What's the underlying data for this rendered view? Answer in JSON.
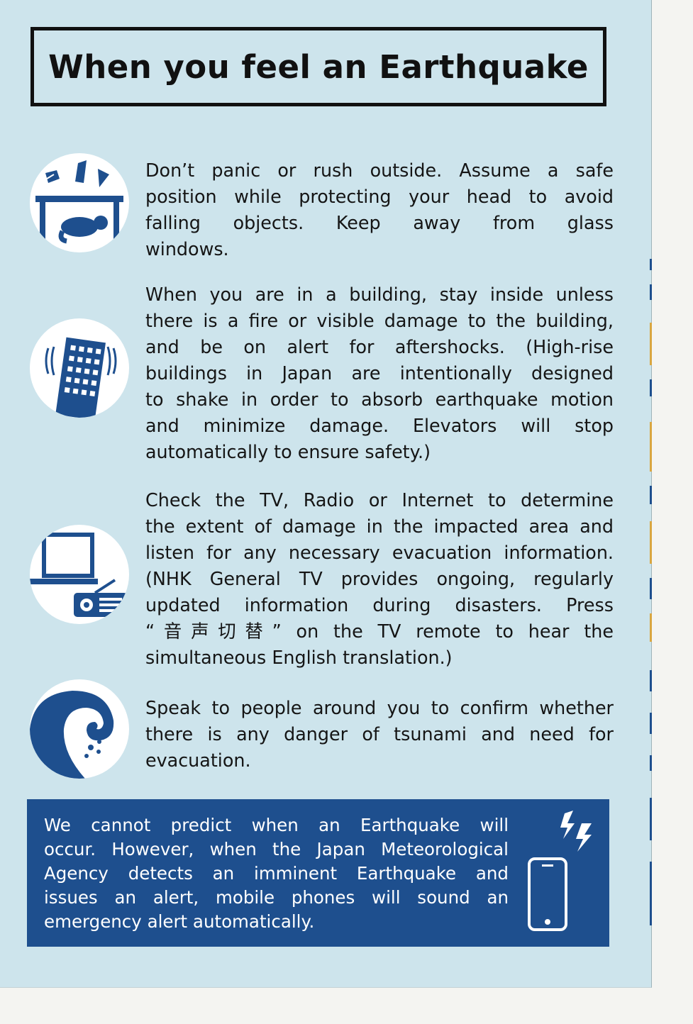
{
  "title": "When you feel an Earthquake",
  "colors": {
    "page_background": "#cde4ec",
    "icon_blue": "#1e4f8e",
    "alert_background": "#1e4f8e",
    "text": "#151515"
  },
  "items": [
    {
      "icon": "desk-shelter-icon",
      "lines": [
        "Don’t panic or rush outside. Assume a safe",
        "position while protecting your head to avoid",
        "falling objects. Keep away from glass",
        "windows."
      ]
    },
    {
      "icon": "shaking-building-icon",
      "lines": [
        "When you are in a building, stay inside unless",
        "there is a fire or visible damage to the building,",
        "and be on alert for aftershocks. (High-rise",
        "buildings in Japan are intentionally designed",
        "to shake in order to absorb earthquake motion",
        "and minimize damage. Elevators will stop",
        "automatically to ensure safety.)"
      ]
    },
    {
      "icon": "tv-radio-icon",
      "lines": [
        "Check the TV, Radio or Internet to determine",
        "the extent of damage in the impacted area and",
        "listen for any necessary evacuation information.",
        "(NHK General TV  provides ongoing, regularly",
        "updated information during disasters. Press",
        "“音声切替” on the TV remote to hear the",
        "simultaneous English translation.)"
      ]
    },
    {
      "icon": "tsunami-wave-icon",
      "lines": [
        "Speak to people around you to confirm whether",
        "there is any danger of tsunami and need for",
        "evacuation."
      ]
    }
  ],
  "alert": {
    "icon": "mobile-phone-alert-icon",
    "lines": [
      "We cannot predict when an Earthquake will",
      "occur. However, when the Japan Meteorological",
      "Agency detects an imminent Earthquake and",
      "issues an alert, mobile phones will sound an",
      "emergency alert automatically."
    ]
  }
}
